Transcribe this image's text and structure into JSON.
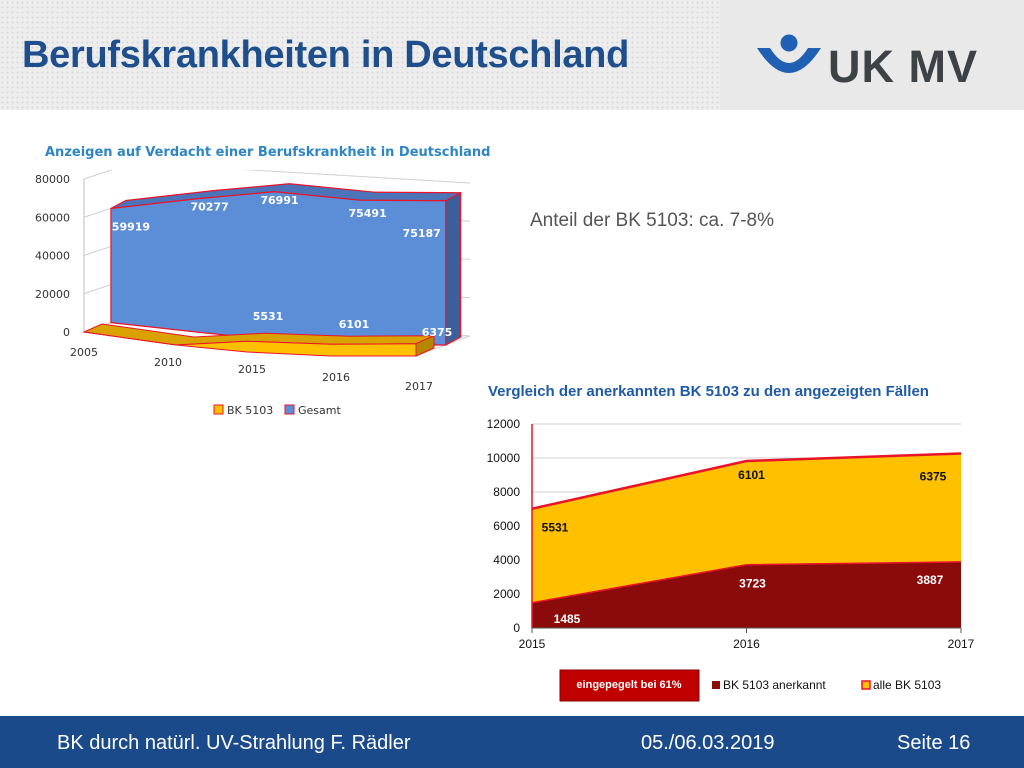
{
  "header": {
    "title": "Berufskrankheiten in Deutschland",
    "logo_text": "UK MV"
  },
  "colors": {
    "title": "#1f4e8c",
    "gesamt": "#5b8ed6",
    "bk5103": "#ffc000",
    "anerkannt": "#8b0b0b",
    "edge": "#e8142a",
    "footer": "#1a4a8a"
  },
  "note": "Anteil der BK 5103: ca. 7-8%",
  "footer": {
    "left": "BK durch natürl. UV-Strahlung  F. Rädler",
    "date": "05./06.03.2019",
    "page": "Seite 16"
  },
  "chart_data": [
    {
      "type": "area",
      "title": "Anzeigen auf Verdacht einer Berufskrankheit in Deutschland",
      "style": "3d",
      "categories": [
        "2005",
        "2010",
        "2015",
        "2016",
        "2017"
      ],
      "y_ticks": [
        "80000",
        "60000",
        "40000",
        "20000",
        "0"
      ],
      "ylim": [
        0,
        80000
      ],
      "grid": true,
      "legend_position": "bottom",
      "series": [
        {
          "name": "BK 5103",
          "values": [
            null,
            null,
            5531,
            6101,
            6375
          ],
          "labels": [
            "",
            "",
            "5531",
            "6101",
            "6375"
          ]
        },
        {
          "name": "Gesamt",
          "values": [
            59919,
            70277,
            76991,
            75491,
            75187
          ],
          "labels": [
            "59919",
            "70277",
            "76991",
            "75491",
            "75187"
          ]
        }
      ]
    },
    {
      "type": "area",
      "title": "Vergleich der anerkannten BK 5103 zu den angezeigten Fällen",
      "categories": [
        "2015",
        "2016",
        "2017"
      ],
      "y_ticks": [
        "12000",
        "10000",
        "8000",
        "6000",
        "4000",
        "2000",
        "0"
      ],
      "ylim": [
        0,
        12000
      ],
      "grid": true,
      "legend_position": "bottom",
      "stacked": true,
      "annotation": "eingepegelt bei 61%",
      "series": [
        {
          "name": "BK 5103 anerkannt",
          "values": [
            1485,
            3723,
            3887
          ],
          "labels": [
            "1485",
            "3723",
            "3887"
          ]
        },
        {
          "name": "alle BK 5103",
          "values": [
            5531,
            6101,
            6375
          ],
          "labels": [
            "5531",
            "6101",
            "6375"
          ]
        }
      ]
    }
  ]
}
